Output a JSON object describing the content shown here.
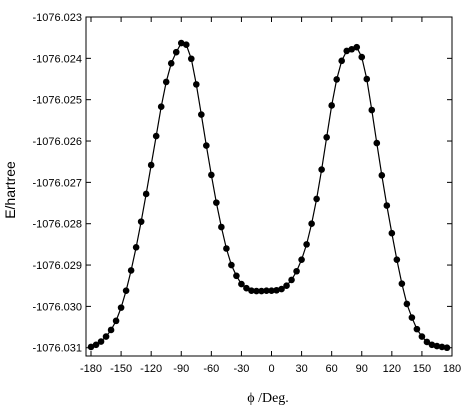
{
  "chart_data": {
    "type": "line",
    "xlabel": "ϕ /Deg.",
    "ylabel": "E/hartree",
    "xlim": [
      -185,
      180
    ],
    "ylim": [
      -1076.0312,
      -1076.023
    ],
    "x_ticks": [
      "-180",
      "-150",
      "-120",
      "-90",
      "-60",
      "-30",
      "0",
      "30",
      "60",
      "90",
      "120",
      "150",
      "180"
    ],
    "y_ticks": [
      "-1076.023",
      "-1076.024",
      "-1076.025",
      "-1076.026",
      "-1076.027",
      "-1076.028",
      "-1076.029",
      "-1076.030",
      "-1076.031"
    ],
    "grid": false,
    "legend": "none",
    "line_color": "#000000",
    "marker": "filled-circle",
    "series": [
      {
        "x": [
          -180,
          -175,
          -170,
          -165,
          -160,
          -155,
          -150,
          -145,
          -140,
          -135,
          -130,
          -125,
          -120,
          -115,
          -110,
          -105,
          -100,
          -95,
          -90,
          -85,
          -80,
          -75,
          -70,
          -65,
          -60,
          -55,
          -50,
          -45,
          -40,
          -35,
          -30,
          -25,
          -20,
          -15,
          -10,
          -5,
          0,
          5,
          10,
          15,
          20,
          25,
          30,
          35,
          40,
          45,
          50,
          55,
          60,
          65,
          70,
          75,
          80,
          85,
          90,
          95,
          100,
          105,
          110,
          115,
          120,
          125,
          130,
          135,
          140,
          145,
          150,
          155,
          160,
          165,
          170,
          175
        ],
        "y": [
          -1076.03098,
          -1076.03093,
          -1076.03085,
          -1076.03073,
          -1076.03057,
          -1076.03035,
          -1076.03003,
          -1076.02962,
          -1076.02913,
          -1076.02857,
          -1076.02795,
          -1076.02728,
          -1076.02658,
          -1076.02588,
          -1076.02517,
          -1076.02457,
          -1076.02412,
          -1076.02385,
          -1076.02363,
          -1076.02367,
          -1076.02401,
          -1076.02463,
          -1076.02536,
          -1076.02611,
          -1076.02682,
          -1076.02749,
          -1076.02808,
          -1076.0286,
          -1076.029,
          -1076.02926,
          -1076.02946,
          -1076.02956,
          -1076.02962,
          -1076.02963,
          -1076.02963,
          -1076.02962,
          -1076.02962,
          -1076.02961,
          -1076.02958,
          -1076.0295,
          -1076.02936,
          -1076.02915,
          -1076.02887,
          -1076.0285,
          -1076.028,
          -1076.0274,
          -1076.02669,
          -1076.02591,
          -1076.02514,
          -1076.02451,
          -1076.02406,
          -1076.02382,
          -1076.02378,
          -1076.02373,
          -1076.02397,
          -1076.0245,
          -1076.02525,
          -1076.02605,
          -1076.02683,
          -1076.02756,
          -1076.02823,
          -1076.02887,
          -1076.02945,
          -1076.02994,
          -1076.03027,
          -1076.03055,
          -1076.03073,
          -1076.03086,
          -1076.03093,
          -1076.03096,
          -1076.03098,
          -1076.031
        ]
      }
    ]
  }
}
